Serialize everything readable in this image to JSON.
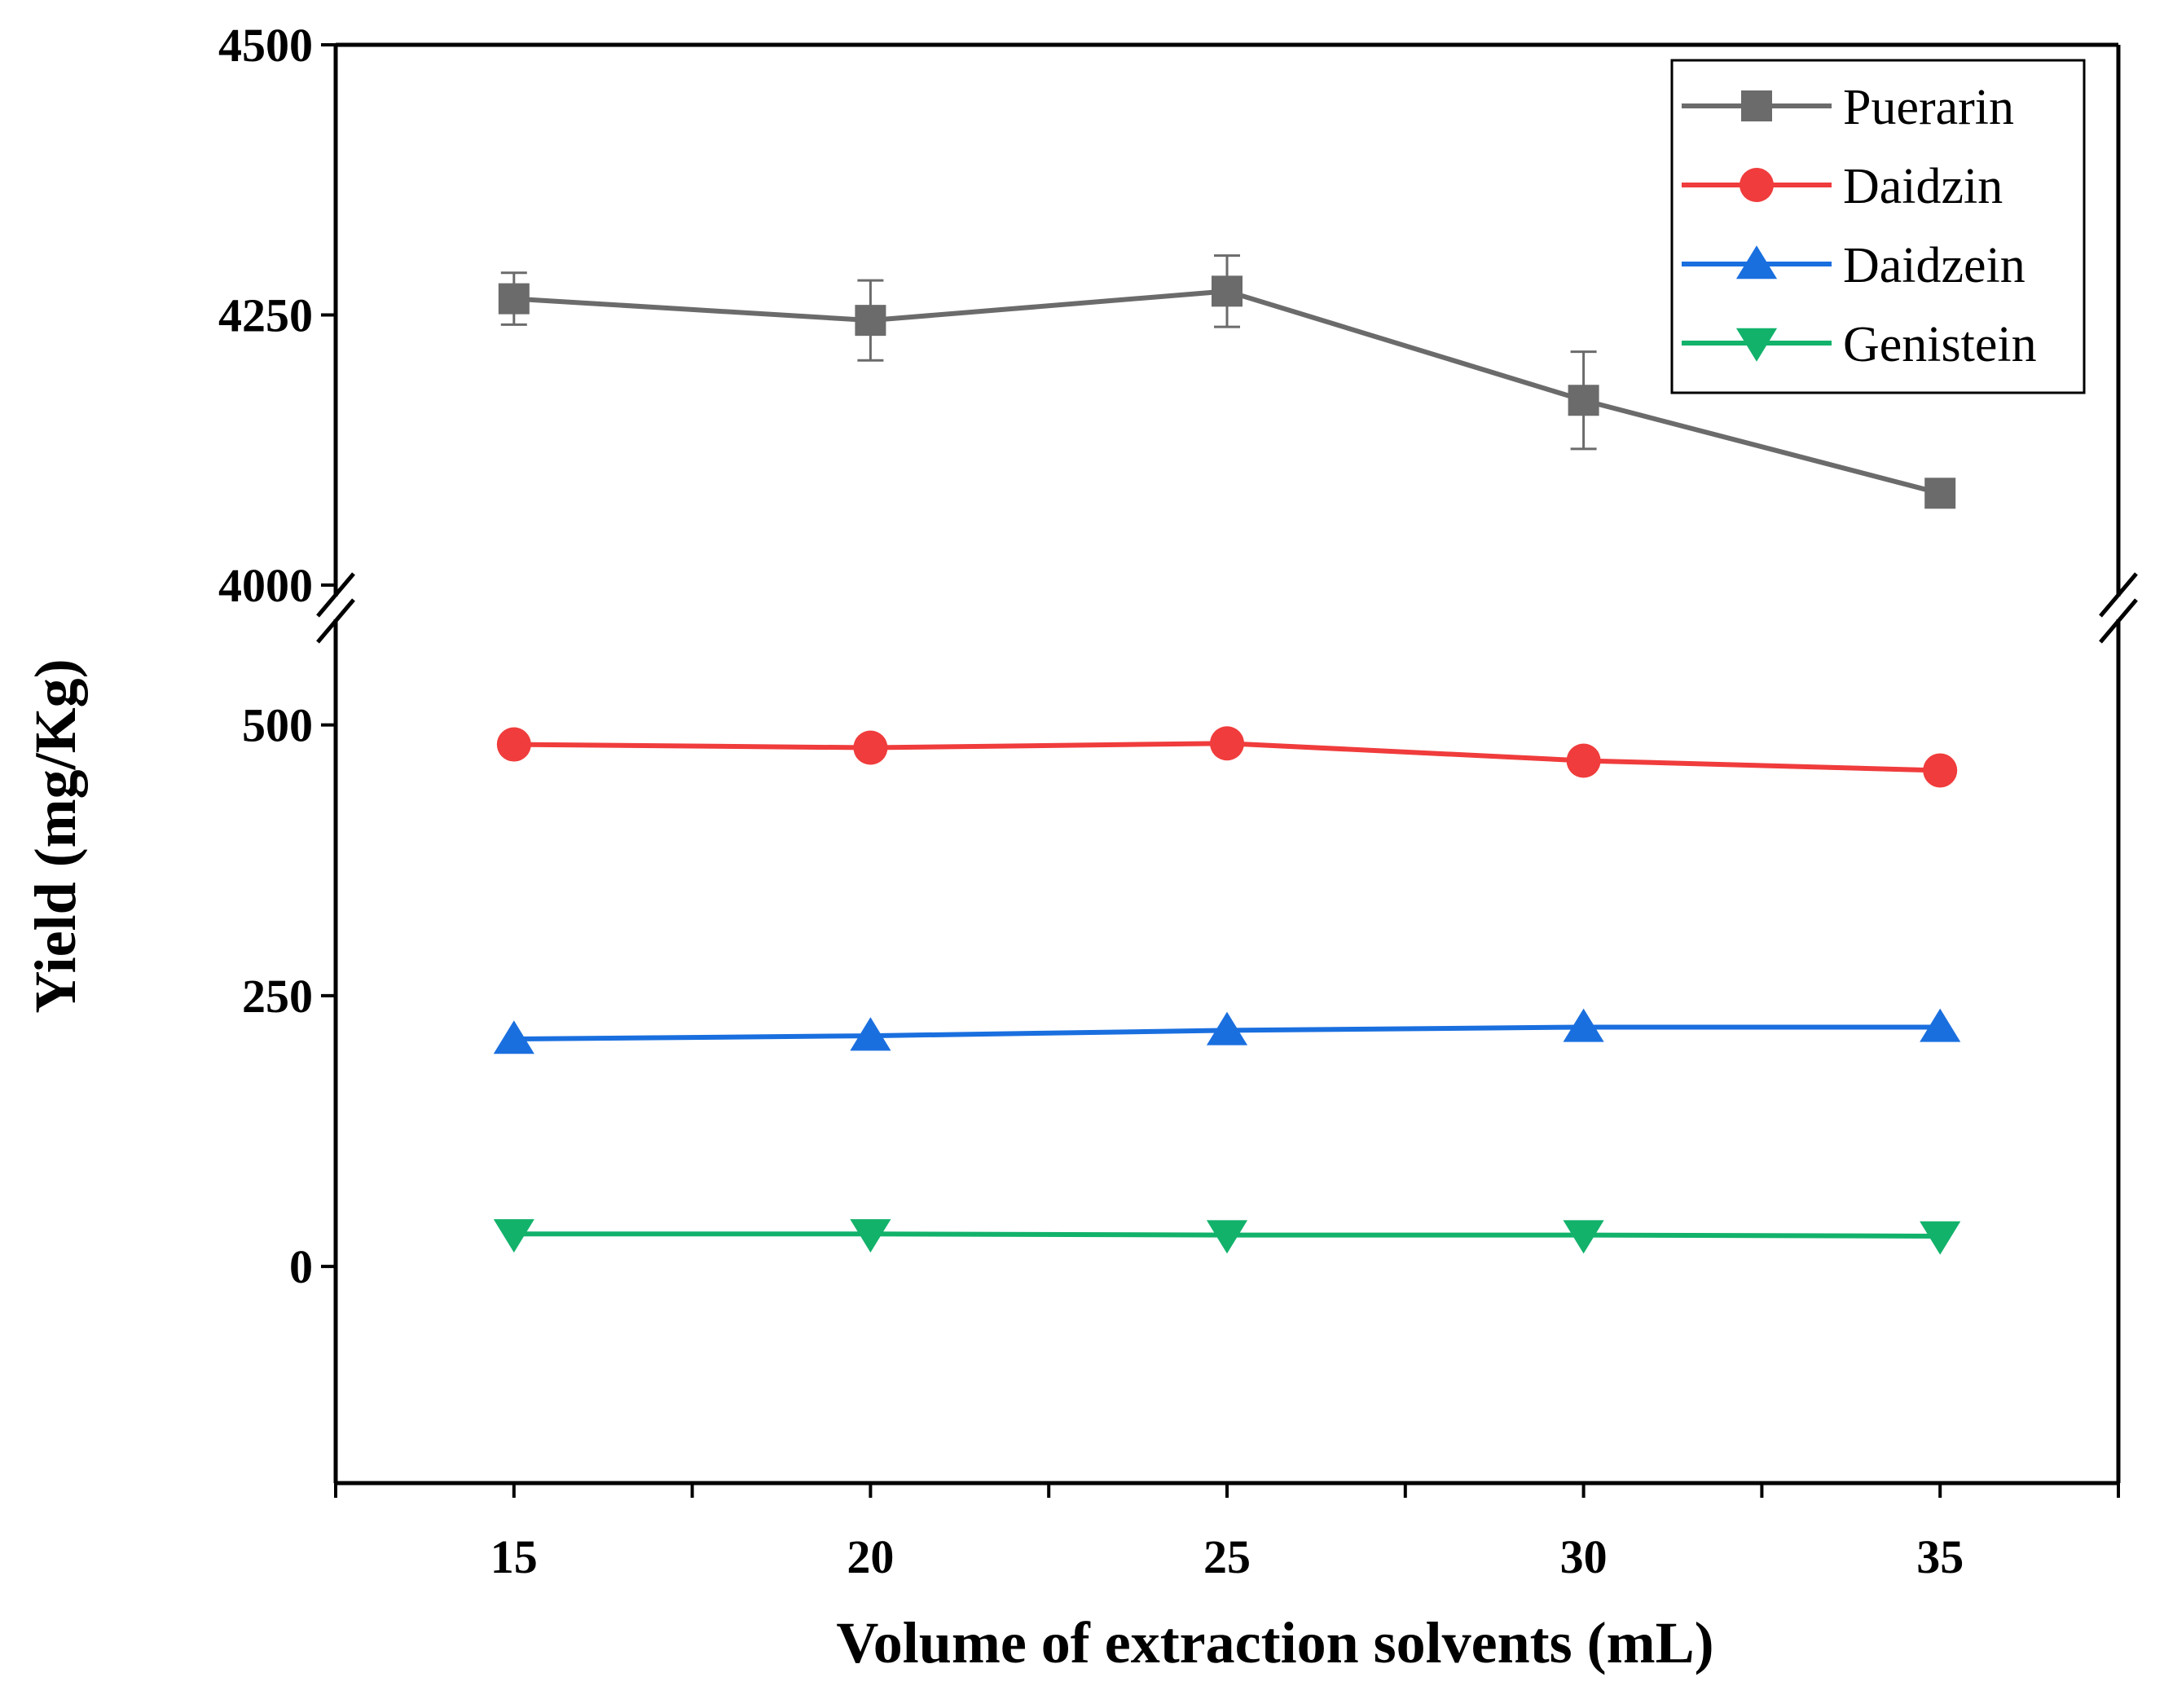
{
  "chart_data": {
    "type": "line",
    "title": "",
    "xlabel": "Volume of extraction solvents (mL)",
    "ylabel": "Yield (mg/Kg)",
    "x": [
      15,
      20,
      25,
      30,
      35
    ],
    "x_ticks": [
      "15",
      "20",
      "25",
      "30",
      "35"
    ],
    "xlim": [
      12.5,
      37.5
    ],
    "y_segments": {
      "lower": {
        "range": [
          -200,
          590
        ],
        "ticks": [
          0,
          250,
          500
        ],
        "tick_labels": [
          "0",
          "250",
          "500"
        ]
      },
      "upper": {
        "range": [
          4000,
          4500
        ],
        "ticks": [
          4000,
          4250,
          4500
        ],
        "tick_labels": [
          "4000",
          "4250",
          "4500"
        ]
      }
    },
    "axis_break": true,
    "legend_position": "top-right",
    "series": [
      {
        "name": "Puerarin",
        "color": "#6b6b6b",
        "marker": "square",
        "segment": "upper",
        "values": [
          4265,
          4245,
          4272,
          4171,
          4085
        ],
        "errors": [
          24,
          37,
          33,
          45,
          0
        ]
      },
      {
        "name": "Daidzin",
        "color": "#f03c3c",
        "marker": "circle",
        "segment": "lower",
        "values": [
          482,
          479,
          483,
          467,
          458
        ]
      },
      {
        "name": "Daidzein",
        "color": "#1a6fdf",
        "marker": "triangle-up",
        "segment": "lower",
        "values": [
          210,
          213,
          218,
          221,
          221
        ]
      },
      {
        "name": "Genistein",
        "color": "#12b26b",
        "marker": "triangle-down",
        "segment": "lower",
        "values": [
          30,
          30,
          29,
          29,
          28
        ]
      }
    ]
  }
}
